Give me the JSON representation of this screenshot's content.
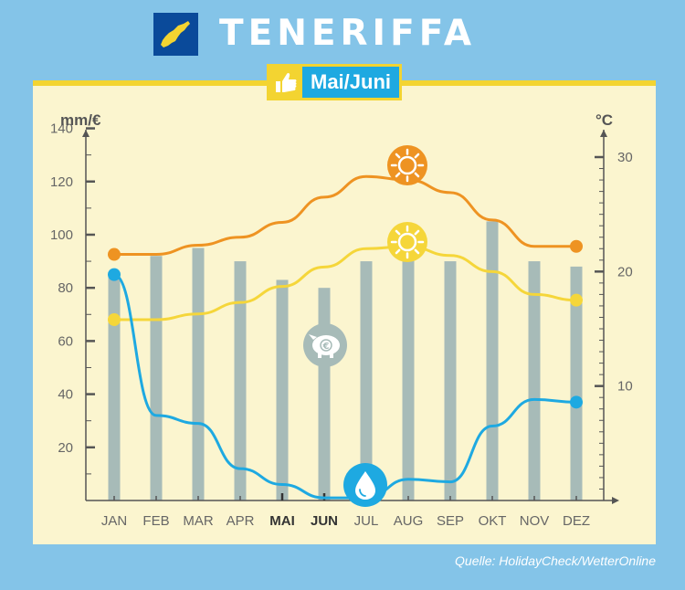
{
  "header": {
    "title": "TENERIFFA",
    "badge_label": "Mai/Juni"
  },
  "footer": {
    "source": "Quelle: HolidayCheck/WetterOnline"
  },
  "colors": {
    "background": "#84c4e8",
    "panel": "#fbf5cf",
    "max_temp_line": "#ee9322",
    "min_temp_line": "#f5d63a",
    "precip_line": "#1ea9e1",
    "price_bars": "#a7bbb8"
  },
  "icons": {
    "flag": "tenerife-island-icon",
    "badge": "thumbs-up-icon",
    "max_temp": "sun-icon",
    "min_temp": "sun-icon",
    "price": "piggy-bank-euro-icon",
    "precip": "water-drop-icon"
  },
  "chart_data": {
    "type": "bar",
    "categories": [
      "JAN",
      "FEB",
      "MAR",
      "APR",
      "MAI",
      "JUN",
      "JUL",
      "AUG",
      "SEP",
      "OKT",
      "NOV",
      "DEZ"
    ],
    "highlight_categories": [
      "MAI",
      "JUN"
    ],
    "y_left": {
      "label": "mm/€",
      "min": 0,
      "max": 145,
      "ticks": [
        20,
        40,
        60,
        80,
        100,
        120,
        140
      ]
    },
    "y_right": {
      "label": "°C",
      "min": 0,
      "max": 30,
      "ticks": [
        10,
        20,
        30
      ]
    },
    "bars": {
      "axis": "left",
      "values": [
        84,
        92,
        95,
        90,
        83,
        80,
        90,
        94,
        90,
        105,
        90,
        88
      ]
    },
    "lines": [
      {
        "axis": "right",
        "icon": "max-temp",
        "values": [
          21.5,
          21.5,
          22.3,
          23,
          24.3,
          26.5,
          28.3,
          28,
          26.9,
          24.5,
          22.2,
          22.2
        ]
      },
      {
        "axis": "right",
        "icon": "min-temp",
        "values": [
          15.8,
          15.8,
          16.3,
          17.3,
          18.7,
          20.4,
          22,
          22.2,
          21.4,
          20,
          18,
          17.5
        ]
      },
      {
        "axis": "left",
        "icon": "precipitation",
        "values": [
          85,
          32,
          29,
          12,
          6,
          1,
          1,
          8,
          7,
          28,
          38,
          37
        ]
      }
    ],
    "grid": false,
    "legend": "none"
  }
}
